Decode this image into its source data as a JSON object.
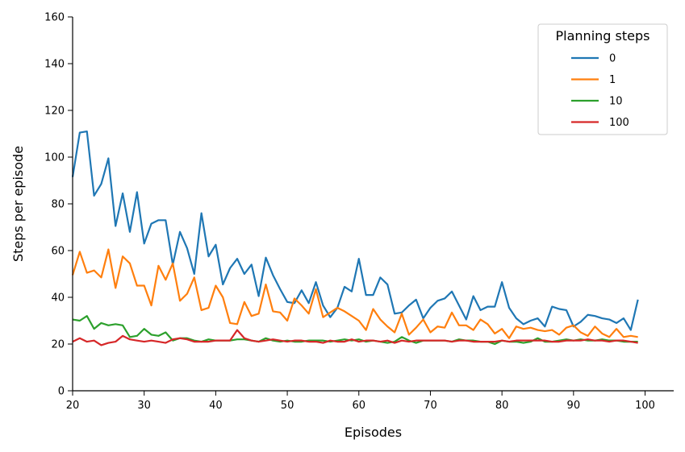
{
  "chart_data": {
    "type": "line",
    "title": "",
    "xlabel": "Episodes",
    "ylabel": "Steps per episode",
    "xlim": [
      20,
      104
    ],
    "ylim": [
      0,
      160
    ],
    "xticks": [
      20,
      30,
      40,
      50,
      60,
      70,
      80,
      90,
      100
    ],
    "yticks": [
      0,
      20,
      40,
      60,
      80,
      100,
      120,
      140,
      160
    ],
    "grid": false,
    "legend": {
      "title": "Planning steps",
      "position": "top-right"
    },
    "x": [
      20,
      21,
      22,
      23,
      24,
      25,
      26,
      27,
      28,
      29,
      30,
      31,
      32,
      33,
      34,
      35,
      36,
      37,
      38,
      39,
      40,
      41,
      42,
      43,
      44,
      45,
      46,
      47,
      48,
      49,
      50,
      51,
      52,
      53,
      54,
      55,
      56,
      57,
      58,
      59,
      60,
      61,
      62,
      63,
      64,
      65,
      66,
      67,
      68,
      69,
      70,
      71,
      72,
      73,
      74,
      75,
      76,
      77,
      78,
      79,
      80,
      81,
      82,
      83,
      84,
      85,
      86,
      87,
      88,
      89,
      90,
      91,
      92,
      93,
      94,
      95,
      96,
      97,
      98,
      99
    ],
    "series": [
      {
        "name": "0",
        "color": "#1f77b4",
        "values": [
          91.5,
          110.5,
          111,
          83.5,
          88.5,
          99.5,
          70.5,
          84.5,
          68,
          85,
          63,
          71.5,
          73,
          73,
          54,
          68,
          61,
          50,
          76,
          57.5,
          62.5,
          45.5,
          52.5,
          56.5,
          50,
          54,
          40.5,
          57,
          49.5,
          43.5,
          38,
          37.5,
          43,
          37.5,
          46.5,
          36.5,
          31.5,
          35.5,
          44.5,
          42.5,
          56.5,
          41,
          41,
          48.5,
          45.5,
          33,
          33.5,
          36.5,
          39,
          31,
          35.5,
          38.5,
          39.5,
          42.5,
          36.5,
          30.5,
          40.5,
          34.5,
          36,
          36,
          46.5,
          35.5,
          31,
          28.5,
          30,
          31,
          27.5,
          36,
          35,
          34.5,
          27.5,
          29.5,
          32.5,
          32,
          31,
          30.5,
          29,
          31,
          26,
          39
        ]
      },
      {
        "name": "1",
        "color": "#ff7f0e",
        "values": [
          49.5,
          59.5,
          50.5,
          51.5,
          48.5,
          60.5,
          44,
          57.5,
          54.5,
          45,
          45,
          36.5,
          53.5,
          47.5,
          54.5,
          38.5,
          41.5,
          48.5,
          34.5,
          35.5,
          45,
          40,
          29,
          28.5,
          38,
          32,
          33,
          45.5,
          34,
          33.5,
          30,
          39.5,
          36.5,
          33,
          43.5,
          31.5,
          33.5,
          35.5,
          34,
          32,
          30,
          26,
          35,
          30.5,
          27.5,
          25,
          33,
          24,
          27,
          30.5,
          25,
          27.5,
          27,
          33.5,
          28,
          28,
          26,
          30.5,
          28.5,
          24.5,
          26.5,
          22.5,
          27.5,
          26.5,
          27,
          26,
          25.5,
          26,
          24,
          27,
          28,
          25,
          23.5,
          27.5,
          24.5,
          23,
          26.5,
          23,
          23.5,
          23
        ]
      },
      {
        "name": "10",
        "color": "#2ca02c",
        "values": [
          30.5,
          30,
          32,
          26.5,
          29,
          28,
          28.5,
          28,
          23,
          23.5,
          26.5,
          24,
          23.5,
          25,
          21.5,
          22.5,
          22.5,
          21.5,
          21,
          22,
          21.5,
          21.5,
          21.5,
          22,
          22,
          21.5,
          21,
          22.5,
          21.5,
          21,
          21.5,
          21,
          21,
          21.5,
          21.5,
          21.5,
          21,
          21.5,
          22,
          21.5,
          22,
          21,
          21.5,
          21,
          20.5,
          21,
          23,
          21.5,
          20.5,
          21.5,
          21.5,
          21.5,
          21.5,
          21,
          22,
          21.5,
          21.5,
          21,
          21,
          20,
          21.5,
          21,
          21,
          20.5,
          21,
          22.5,
          21,
          21,
          21.5,
          22,
          21.5,
          22,
          21.5,
          21.5,
          22,
          21.5,
          21.5,
          21,
          21,
          21
        ]
      },
      {
        "name": "100",
        "color": "#d62728",
        "values": [
          21,
          22.5,
          21,
          21.5,
          19.5,
          20.5,
          21,
          23.5,
          22,
          21.5,
          21,
          21.5,
          21,
          20.5,
          22,
          22.5,
          22,
          21,
          21,
          21,
          21.5,
          21.5,
          21.5,
          26,
          22.5,
          21.5,
          21,
          21.5,
          22,
          21.5,
          21,
          21.5,
          21.5,
          21,
          21,
          20.5,
          21.5,
          21,
          21,
          22,
          21,
          21.5,
          21.5,
          21,
          21.5,
          20.5,
          21.5,
          21,
          21.5,
          21.5,
          21.5,
          21.5,
          21.5,
          21,
          21.5,
          21.5,
          21,
          21,
          21,
          21,
          21.5,
          21,
          21.5,
          21.5,
          21.5,
          21.5,
          21.5,
          21,
          21,
          21.5,
          21.5,
          21.5,
          22,
          21.5,
          21.5,
          21,
          21.5,
          21.5,
          21,
          20.5
        ]
      }
    ]
  }
}
